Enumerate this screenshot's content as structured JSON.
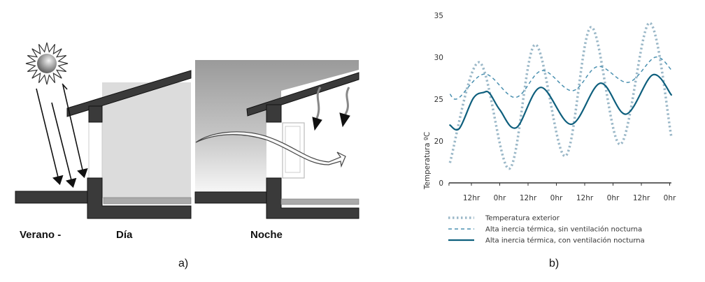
{
  "panel_a": {
    "labels": [
      "Verano -",
      "Día",
      "Noche"
    ],
    "caption": "a)"
  },
  "panel_b": {
    "caption": "b)"
  },
  "chart_data": {
    "type": "line",
    "title": "",
    "xlabel": "",
    "ylabel": "Temperatura ºC",
    "x_unit": "hours",
    "x_ticks": [
      12,
      24,
      36,
      48,
      60,
      72,
      84,
      96
    ],
    "x_tick_labels": [
      "12hr",
      "0hr",
      "12hr",
      "0hr",
      "12hr",
      "0hr",
      "12hr",
      "0hr"
    ],
    "y_ticks": [
      20,
      25,
      30,
      35
    ],
    "y_tick_labels": [
      "20",
      "25",
      "30",
      "35"
    ],
    "y_axis_origin_label": "0",
    "y_axis_broken": true,
    "ylim": [
      15,
      35
    ],
    "xlim": [
      2.5,
      96.7
    ],
    "grid": false,
    "legend_position": "bottom",
    "series": [
      {
        "name": "Temperatura exterior",
        "style": "dotted",
        "color": "#9bb8c8",
        "x": [
          2.9,
          15.3,
          28.1,
          39.0,
          51.8,
          62.7,
          75.0,
          87.4,
          96.7
        ],
        "values": [
          17.4,
          29.4,
          16.7,
          31.5,
          18.2,
          33.6,
          19.6,
          34.1,
          20.5
        ]
      },
      {
        "name": "Alta inercia térmica, sin ventilación nocturna",
        "style": "dashed",
        "color": "#4a90b0",
        "x": [
          2.9,
          6.4,
          17.7,
          30.6,
          41.9,
          54.8,
          65.6,
          78.5,
          89.8,
          96.7
        ],
        "values": [
          25.6,
          25.1,
          28.0,
          25.2,
          28.4,
          26.0,
          28.9,
          27.0,
          30.0,
          28.5
        ]
      },
      {
        "name": "Alta inercia térmica, con ventilación nocturna",
        "style": "solid",
        "color": "#0e5f7d",
        "x": [
          2.9,
          6.9,
          12.8,
          17.2,
          19.7,
          24.1,
          31.1,
          41.4,
          54.3,
          66.6,
          77.5,
          88.8,
          96.7
        ],
        "values": [
          21.9,
          21.5,
          25.1,
          25.8,
          25.7,
          23.7,
          21.6,
          26.4,
          22.0,
          26.9,
          23.2,
          27.9,
          25.5
        ]
      }
    ]
  }
}
